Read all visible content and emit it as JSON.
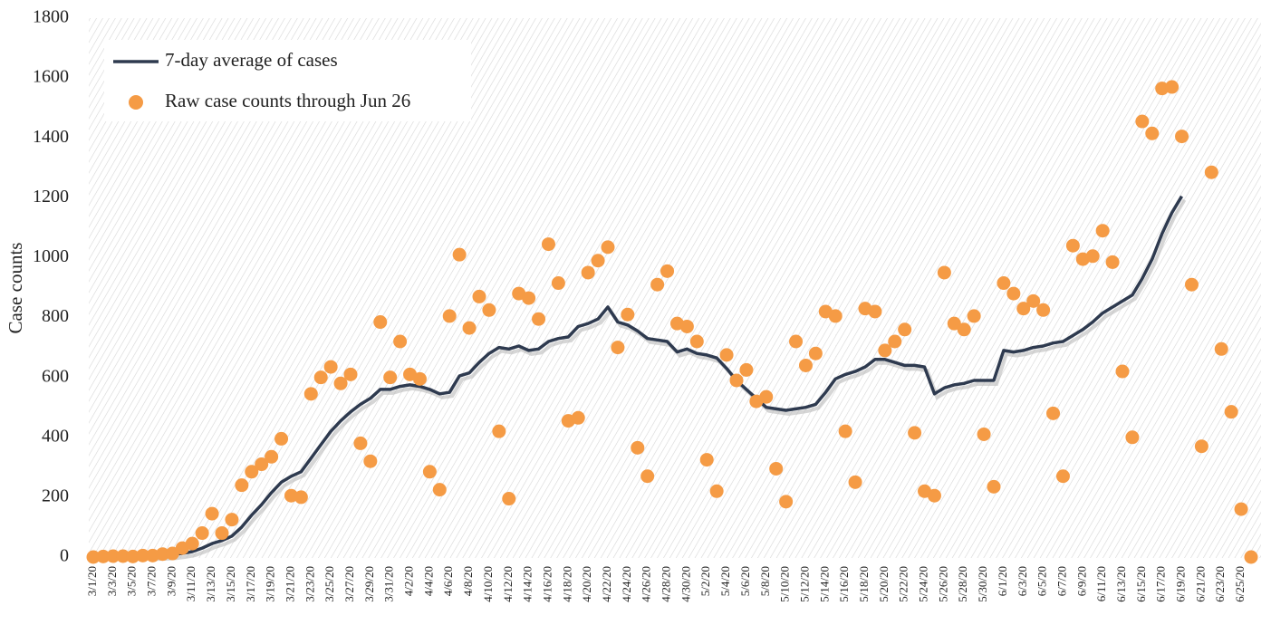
{
  "chart_data": {
    "type": "line",
    "ylabel": "Case counts",
    "categories": [
      "3/1/20",
      null,
      "3/3/20",
      null,
      "3/5/20",
      null,
      "3/7/20",
      null,
      "3/9/20",
      null,
      "3/11/20",
      null,
      "3/13/20",
      null,
      "3/15/20",
      null,
      "3/17/20",
      null,
      "3/19/20",
      null,
      "3/21/20",
      null,
      "3/23/20",
      null,
      "3/25/20",
      null,
      "3/27/20",
      null,
      "3/29/20",
      null,
      "3/31/20",
      null,
      "4/2/20",
      null,
      "4/4/20",
      null,
      "4/6/20",
      null,
      "4/8/20",
      null,
      "4/10/20",
      null,
      "4/12/20",
      null,
      "4/14/20",
      null,
      "4/16/20",
      null,
      "4/18/20",
      null,
      "4/20/20",
      null,
      "4/22/20",
      null,
      "4/24/20",
      null,
      "4/26/20",
      null,
      "4/28/20",
      null,
      "4/30/20",
      null,
      "5/2/20",
      null,
      "5/4/20",
      null,
      "5/6/20",
      null,
      "5/8/20",
      null,
      "5/10/20",
      null,
      "5/12/20",
      null,
      "5/14/20",
      null,
      "5/16/20",
      null,
      "5/18/20",
      null,
      "5/20/20",
      null,
      "5/22/20",
      null,
      "5/24/20",
      null,
      "5/26/20",
      null,
      "5/28/20",
      null,
      "5/30/20",
      null,
      "6/1/20",
      null,
      "6/3/20",
      null,
      "6/5/20",
      null,
      "6/7/20",
      null,
      "6/9/20",
      null,
      "6/11/20",
      null,
      "6/13/20",
      null,
      "6/15/20",
      null,
      "6/17/20",
      null,
      "6/19/20",
      null,
      "6/21/20",
      null,
      "6/23/20",
      null,
      "6/25/20",
      null
    ],
    "series": [
      {
        "name": "7-day average of cases",
        "color": "#2e3a4f",
        "mark": "line",
        "values": [
          null,
          null,
          null,
          null,
          null,
          null,
          5,
          6,
          8,
          12,
          18,
          30,
          45,
          55,
          70,
          100,
          140,
          175,
          215,
          250,
          270,
          285,
          330,
          375,
          420,
          455,
          485,
          510,
          530,
          560,
          560,
          570,
          575,
          570,
          560,
          545,
          550,
          605,
          615,
          650,
          680,
          700,
          695,
          705,
          690,
          695,
          720,
          730,
          735,
          770,
          780,
          795,
          835,
          785,
          775,
          755,
          730,
          725,
          720,
          685,
          695,
          680,
          675,
          665,
          630,
          590,
          560,
          530,
          500,
          495,
          490,
          495,
          500,
          510,
          550,
          595,
          610,
          620,
          635,
          660,
          660,
          650,
          640,
          640,
          635,
          545,
          565,
          575,
          580,
          590,
          590,
          590,
          690,
          685,
          690,
          700,
          705,
          715,
          720,
          740,
          760,
          785,
          815,
          835,
          855,
          875,
          930,
          995,
          1080,
          1150,
          1205,
          null,
          null,
          null,
          null,
          null,
          null,
          null
        ]
      },
      {
        "name": "Raw case counts through Jun 26",
        "color": "#f59b45",
        "mark": "dots",
        "values": [
          0,
          2,
          3,
          3,
          2,
          5,
          5,
          10,
          12,
          30,
          45,
          80,
          145,
          80,
          125,
          240,
          285,
          310,
          335,
          395,
          205,
          200,
          545,
          600,
          635,
          580,
          610,
          380,
          320,
          785,
          600,
          720,
          610,
          595,
          285,
          225,
          805,
          1010,
          765,
          870,
          825,
          420,
          195,
          880,
          865,
          795,
          1045,
          915,
          455,
          465,
          950,
          990,
          1035,
          700,
          810,
          365,
          270,
          910,
          955,
          780,
          770,
          720,
          325,
          220,
          675,
          590,
          625,
          520,
          535,
          295,
          185,
          720,
          640,
          680,
          820,
          805,
          420,
          250,
          830,
          820,
          690,
          720,
          760,
          415,
          220,
          205,
          950,
          780,
          760,
          805,
          410,
          235,
          915,
          880,
          830,
          855,
          825,
          480,
          270,
          1040,
          995,
          1005,
          1090,
          985,
          620,
          400,
          1455,
          1415,
          1565,
          1570,
          1405,
          910,
          370,
          1285,
          695,
          485,
          160,
          0
        ]
      }
    ],
    "ylim": [
      0,
      1800
    ],
    "yticks": [
      0,
      200,
      400,
      600,
      800,
      1000,
      1200,
      1400,
      1600,
      1800
    ],
    "legend": "upper left"
  }
}
